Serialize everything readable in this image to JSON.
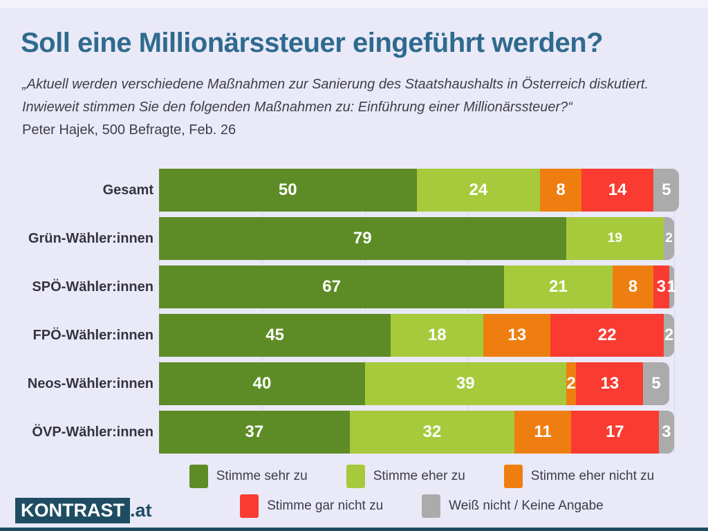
{
  "page": {
    "title": "Soll eine Millionärssteuer eingeführt werden?",
    "quote_line1": "„Aktuell werden verschiedene Maßnahmen zur Sanierung des Staatshaushalts in Österreich diskutiert.",
    "quote_line2": "Inwieweit stimmen Sie den folgenden Maßnahmen zu: Einführung einer Millionärssteuer?“",
    "source_line": "Peter Hajek, 500 Befragte, Feb. 26"
  },
  "colors": {
    "background": "#eae9f8",
    "title": "#2f6a8e",
    "text": "#3e3f49",
    "row_label": "#34343e",
    "value_label": "#ffffff",
    "gridline": "#d8d7e8",
    "brand_teal": "#1e4d63",
    "sehr": "#5d8c26",
    "eher": "#a6ca3b",
    "eher_nicht": "#ef7e10",
    "gar_nicht": "#f93b31",
    "weiss_nicht": "#ababab"
  },
  "chart_data": {
    "type": "bar",
    "stacked": true,
    "horizontal": true,
    "unit": "percent",
    "x_max": 100,
    "gridline_interval": 20,
    "grid": true,
    "legend_position": "bottom",
    "categories": [
      "Gesamt",
      "Grün-Wähler:innen",
      "SPÖ-Wähler:innen",
      "FPÖ-Wähler:innen",
      "Neos-Wähler:innen",
      "ÖVP-Wähler:innen"
    ],
    "series": [
      {
        "name": "Stimme sehr zu",
        "color_key": "sehr",
        "values": [
          50,
          79,
          67,
          45,
          40,
          37
        ]
      },
      {
        "name": "Stimme eher zu",
        "color_key": "eher",
        "values": [
          24,
          19,
          21,
          18,
          39,
          32
        ]
      },
      {
        "name": "Stimme eher nicht zu",
        "color_key": "eher_nicht",
        "values": [
          8,
          0,
          8,
          13,
          2,
          11
        ]
      },
      {
        "name": "Stimme gar nicht zu",
        "color_key": "gar_nicht",
        "values": [
          14,
          0,
          3,
          22,
          13,
          17
        ]
      },
      {
        "name": "Weiß nicht / Keine Angabe",
        "color_key": "weiss_nicht",
        "values": [
          5,
          2,
          1,
          2,
          5,
          3
        ]
      }
    ],
    "small_value_labels": [
      [
        1,
        1
      ],
      [
        1,
        4
      ]
    ]
  },
  "legend": {
    "row_split": 3
  },
  "logo": {
    "box_text": "KONTRAST",
    "suffix": ".at"
  }
}
